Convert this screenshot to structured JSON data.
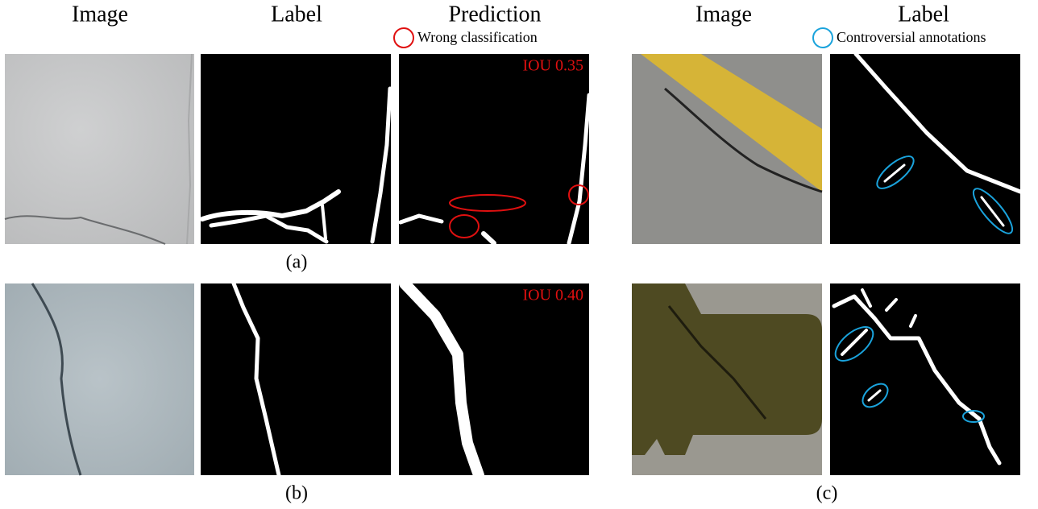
{
  "headers": {
    "left": [
      "Image",
      "Label",
      "Prediction"
    ],
    "right": [
      "Image",
      "Label"
    ]
  },
  "legend": {
    "wrong": "Wrong classification",
    "controversial": "Controversial annotations"
  },
  "panels": [
    {
      "caption": "(a)",
      "iou": "IOU 0.35"
    },
    {
      "caption": "(b)",
      "iou": "IOU 0.40"
    },
    {
      "caption": "(c)"
    }
  ]
}
